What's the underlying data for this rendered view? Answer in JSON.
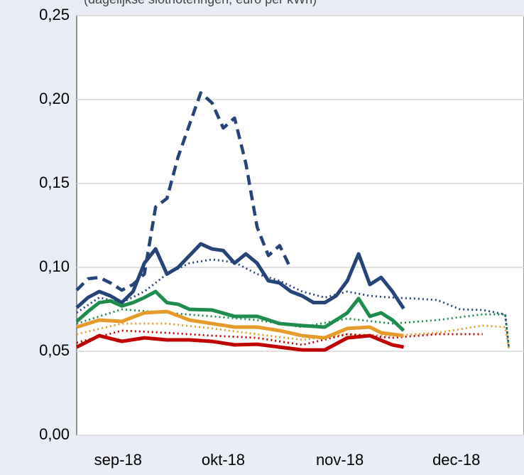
{
  "chart_data": {
    "type": "line",
    "subtitle": "(dagelijkse slotnoteringen, euro per kWh)",
    "xlim": [
      0,
      119
    ],
    "xticks": [
      {
        "value": 11,
        "label": "sep-18"
      },
      {
        "value": 39,
        "label": "okt-18"
      },
      {
        "value": 70,
        "label": "nov-18"
      },
      {
        "value": 101,
        "label": "dec-18"
      }
    ],
    "ylim": [
      0,
      0.25
    ],
    "yticks": [
      {
        "value": 0,
        "label": "0,00"
      },
      {
        "value": 0.05,
        "label": "0,05"
      },
      {
        "value": 0.1,
        "label": "0,10"
      },
      {
        "value": 0.15,
        "label": "0,15"
      },
      {
        "value": 0.2,
        "label": "0,20"
      },
      {
        "value": 0.25,
        "label": "0,25"
      }
    ],
    "grid": true,
    "series": [
      {
        "color": "#264478",
        "dash": "dashed",
        "x": [
          0,
          3,
          6,
          9,
          12,
          15,
          18,
          21,
          24,
          27,
          30,
          33,
          36,
          39,
          42,
          45,
          48,
          51,
          54,
          57
        ],
        "values": [
          0.0864,
          0.0932,
          0.094,
          0.0907,
          0.0864,
          0.0898,
          0.096,
          0.136,
          0.141,
          0.166,
          0.185,
          0.204,
          0.198,
          0.183,
          0.189,
          0.162,
          0.124,
          0.107,
          0.113,
          0.099
        ]
      },
      {
        "color": "#264478",
        "dash": "dotted",
        "x": [
          0,
          6,
          12,
          18,
          24,
          30,
          36,
          42,
          48,
          54,
          60,
          66,
          72,
          78,
          84,
          90,
          96,
          102,
          108,
          114,
          115
        ],
        "values": [
          0.073,
          0.082,
          0.079,
          0.0856,
          0.096,
          0.1025,
          0.1047,
          0.103,
          0.096,
          0.092,
          0.0856,
          0.082,
          0.0856,
          0.083,
          0.082,
          0.0814,
          0.0805,
          0.075,
          0.0746,
          0.072,
          0.0517
        ]
      },
      {
        "color": "#1e8c4e",
        "dash": "dotted",
        "x": [
          0,
          12,
          24,
          36,
          48,
          60,
          72,
          84,
          96,
          108,
          114,
          115
        ],
        "values": [
          0.0665,
          0.075,
          0.0729,
          0.0708,
          0.0686,
          0.0644,
          0.0695,
          0.0665,
          0.0686,
          0.072,
          0.072,
          0.0517
        ]
      },
      {
        "color": "#e59a2a",
        "dash": "dotted",
        "x": [
          0,
          12,
          24,
          36,
          48,
          60,
          72,
          84,
          96,
          108,
          114,
          115
        ],
        "values": [
          0.0602,
          0.0665,
          0.0665,
          0.0636,
          0.0602,
          0.0568,
          0.0602,
          0.0593,
          0.061,
          0.0653,
          0.0644,
          0.0508
        ]
      },
      {
        "color": "#c00000",
        "dash": "dotted",
        "x": [
          0,
          12,
          24,
          36,
          48,
          60,
          72,
          84,
          96,
          108
        ],
        "values": [
          0.0551,
          0.0623,
          0.061,
          0.0593,
          0.058,
          0.0538,
          0.0602,
          0.058,
          0.0602,
          0.0602
        ]
      },
      {
        "color": "#264478",
        "dash": "solid",
        "x": [
          0,
          3,
          6,
          9,
          12,
          15,
          18,
          21,
          24,
          27,
          30,
          33,
          36,
          39,
          42,
          45,
          48,
          51,
          54,
          57,
          60,
          63,
          66,
          69,
          72,
          75,
          78,
          81,
          84,
          87
        ],
        "values": [
          0.076,
          0.082,
          0.0856,
          0.083,
          0.079,
          0.0856,
          0.1025,
          0.111,
          0.096,
          0.1,
          0.107,
          0.114,
          0.111,
          0.11,
          0.1025,
          0.108,
          0.1025,
          0.092,
          0.0907,
          0.0856,
          0.083,
          0.079,
          0.079,
          0.083,
          0.092,
          0.108,
          0.0898,
          0.094,
          0.0856,
          0.0754
        ]
      },
      {
        "color": "#1e8c4e",
        "dash": "solid",
        "x": [
          0,
          3,
          6,
          9,
          12,
          15,
          18,
          21,
          24,
          27,
          30,
          36,
          42,
          48,
          54,
          60,
          66,
          69,
          72,
          75,
          78,
          81,
          84,
          87
        ],
        "values": [
          0.0678,
          0.0737,
          0.079,
          0.08,
          0.077,
          0.079,
          0.082,
          0.0856,
          0.079,
          0.078,
          0.075,
          0.0746,
          0.0708,
          0.0708,
          0.0665,
          0.0653,
          0.0644,
          0.0686,
          0.0729,
          0.0814,
          0.0708,
          0.0729,
          0.0686,
          0.0623
        ]
      },
      {
        "color": "#e59a2a",
        "dash": "solid",
        "x": [
          0,
          6,
          12,
          18,
          24,
          30,
          36,
          42,
          48,
          54,
          60,
          66,
          72,
          78,
          81,
          87
        ],
        "values": [
          0.0644,
          0.0686,
          0.0678,
          0.0729,
          0.0737,
          0.0686,
          0.0665,
          0.0644,
          0.0644,
          0.0623,
          0.0593,
          0.058,
          0.0636,
          0.0644,
          0.061,
          0.0593
        ]
      },
      {
        "color": "#c00000",
        "dash": "solid",
        "x": [
          0,
          6,
          12,
          18,
          24,
          30,
          36,
          42,
          48,
          54,
          60,
          66,
          72,
          78,
          84,
          87
        ],
        "values": [
          0.0525,
          0.0593,
          0.0559,
          0.058,
          0.0568,
          0.0568,
          0.0559,
          0.0538,
          0.0542,
          0.0525,
          0.0508,
          0.0508,
          0.058,
          0.0593,
          0.0538,
          0.0525
        ]
      }
    ]
  }
}
